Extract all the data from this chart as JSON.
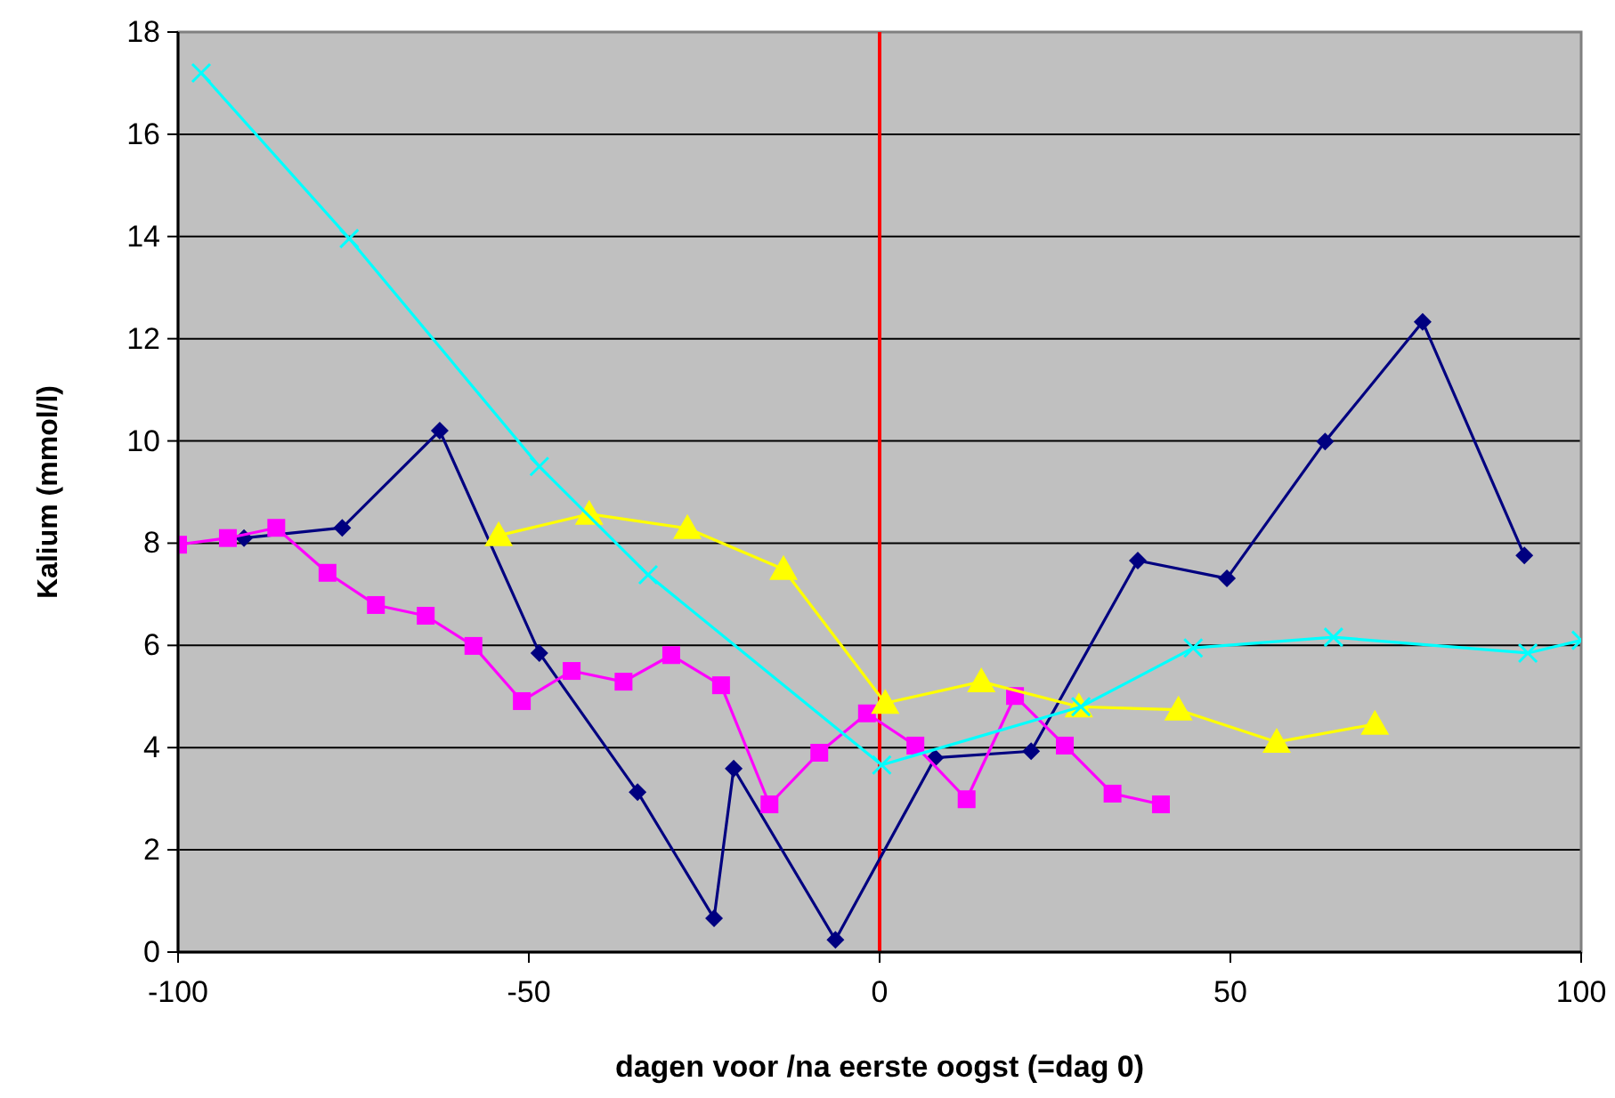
{
  "chart_data": {
    "type": "line",
    "xlabel": "dagen voor /na eerste oogst (=dag 0)",
    "ylabel": "Kalium (mmol/l)",
    "xlim": [
      -100,
      100
    ],
    "xticks": [
      -100,
      -50,
      0,
      50,
      100
    ],
    "ylim": [
      0,
      18
    ],
    "yticks": [
      0,
      2,
      4,
      6,
      8,
      10,
      12,
      14,
      16,
      18
    ],
    "grid": "y",
    "line_style": "solid",
    "ref_lines": [
      {
        "axis": "x",
        "value": 0,
        "color": "#ff0000"
      }
    ],
    "series": [
      {
        "color": "#000080",
        "marker": "diamond",
        "x": [
          -90.6,
          -76.6,
          -62.7,
          -48.5,
          -34.5,
          -23.6,
          -20.8,
          -6.3,
          7.9,
          21.6,
          36.8,
          49.5,
          63.5,
          77.4,
          91.9
        ],
        "values": [
          8.1,
          8.3,
          10.2,
          5.85,
          3.13,
          0.66,
          3.59,
          0.24,
          3.8,
          3.93,
          7.66,
          7.31,
          9.99,
          12.33,
          7.76
        ]
      },
      {
        "color": "#ff00ff",
        "marker": "square",
        "x": [
          -100,
          -92.9,
          -86,
          -78.7,
          -71.8,
          -64.7,
          -57.9,
          -51,
          -43.9,
          -36.5,
          -29.7,
          -22.6,
          -15.7,
          -8.6,
          -1.8,
          5.1,
          12.4,
          19.3,
          26.4,
          33.2,
          40.1
        ],
        "values": [
          7.97,
          8.1,
          8.3,
          7.42,
          6.79,
          6.58,
          5.99,
          4.91,
          5.5,
          5.29,
          5.81,
          5.22,
          2.89,
          3.9,
          4.67,
          4.04,
          2.99,
          5.01,
          4.04,
          3.1,
          2.89
        ]
      },
      {
        "color": "#ffff00",
        "marker": "triangle",
        "x": [
          -54.3,
          -41.4,
          -27.4,
          -13.7,
          0.8,
          14.5,
          28.4,
          42.6,
          56.6,
          70.6
        ],
        "values": [
          8.15,
          8.57,
          8.29,
          7.49,
          4.87,
          5.29,
          4.8,
          4.74,
          4.11,
          4.46
        ]
      },
      {
        "color": "#00ffff",
        "marker": "cross",
        "x": [
          -96.7,
          -75.6,
          -48.5,
          -33,
          0.3,
          28.7,
          44.7,
          64.7,
          92.4,
          100
        ],
        "values": [
          17.2,
          13.96,
          9.5,
          7.38,
          3.66,
          4.8,
          5.95,
          6.16,
          5.85,
          6.1
        ]
      }
    ]
  }
}
